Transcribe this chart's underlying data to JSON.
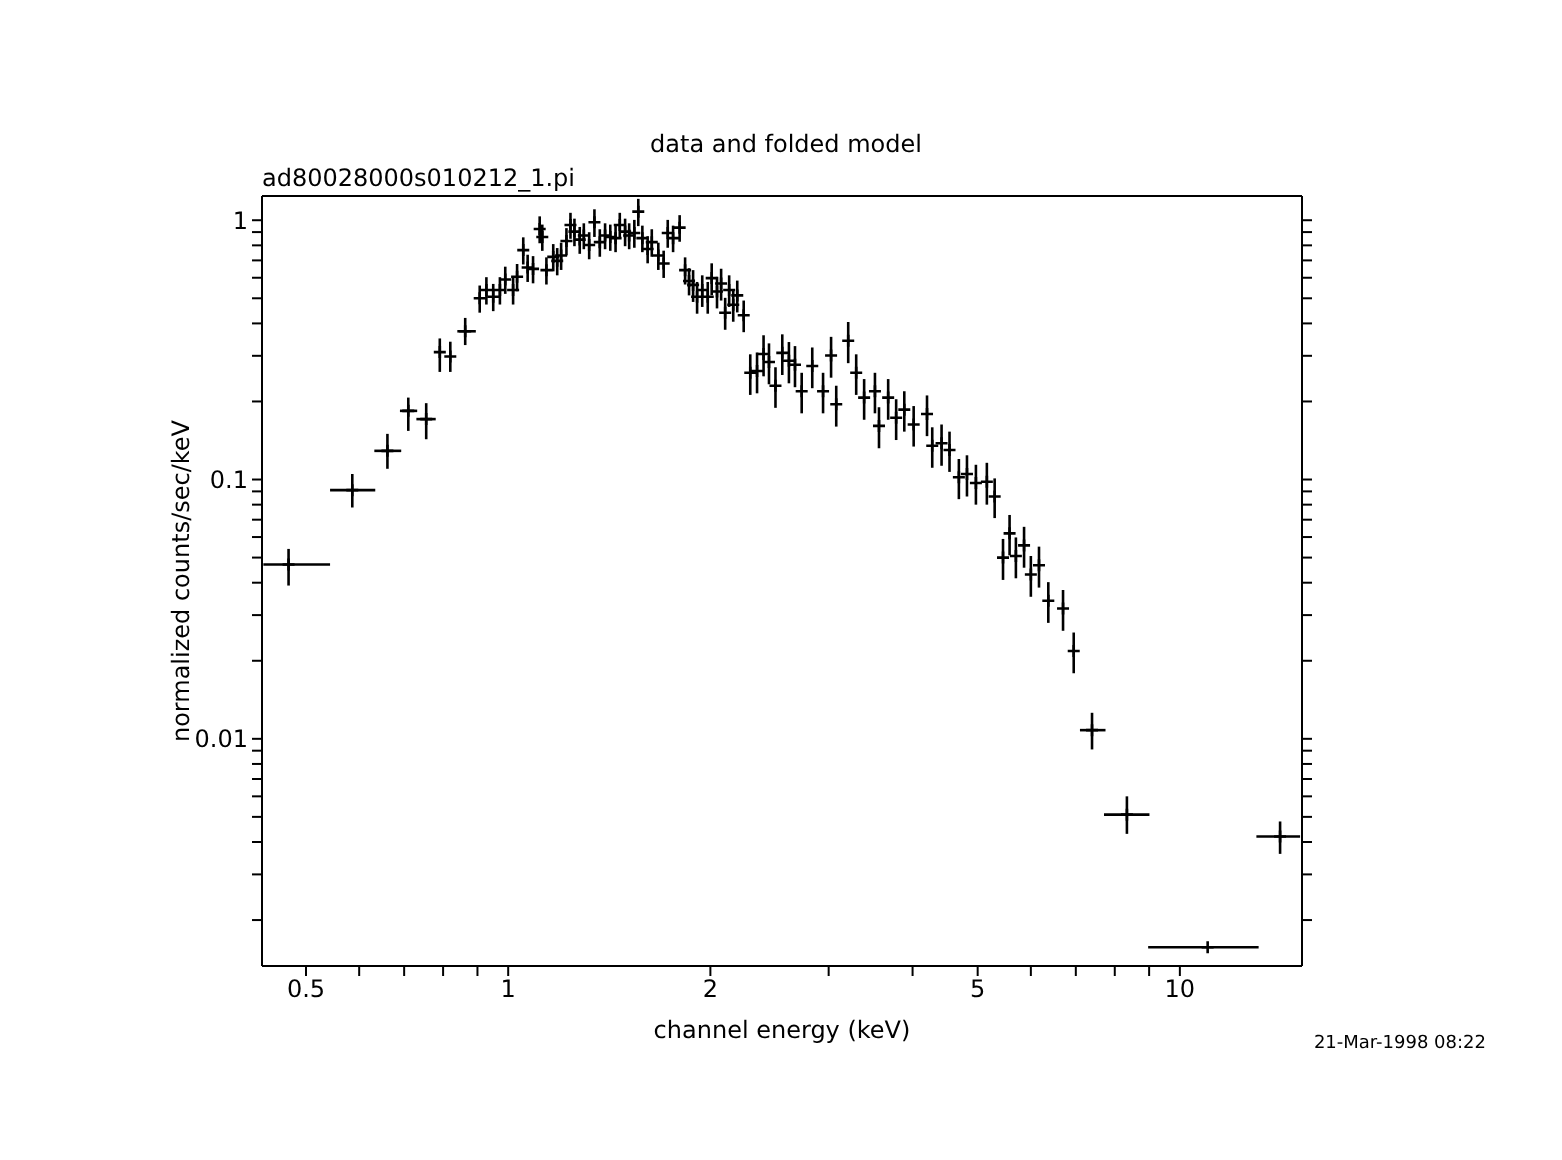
{
  "chart_data": {
    "type": "scatter",
    "title": "data and folded model",
    "subtitle": "ad80028000s010212_1.pi",
    "xlabel": "channel energy (keV)",
    "ylabel": "normalized counts/sec/keV",
    "annotations": [
      "21-Mar-1998 08:22"
    ],
    "log": "xy",
    "marker": "cross",
    "xlim": [
      0.43,
      15.2
    ],
    "ylim": [
      0.00133,
      1.24
    ],
    "xticks": [
      0.5,
      {
        "value": 0.6,
        "label": null
      },
      {
        "value": 0.7,
        "label": null
      },
      {
        "value": 0.8,
        "label": null
      },
      {
        "value": 0.9,
        "label": null
      },
      1,
      2,
      {
        "value": 3,
        "label": null
      },
      {
        "value": 4,
        "label": null
      },
      5,
      {
        "value": 6,
        "label": null
      },
      {
        "value": 7,
        "label": null
      },
      {
        "value": 8,
        "label": null
      },
      {
        "value": 9,
        "label": null
      },
      10
    ],
    "yticks": [
      {
        "value": 0.002,
        "label": null
      },
      {
        "value": 0.003,
        "label": null
      },
      {
        "value": 0.004,
        "label": null
      },
      {
        "value": 0.005,
        "label": null
      },
      {
        "value": 0.006,
        "label": null
      },
      {
        "value": 0.007,
        "label": null
      },
      {
        "value": 0.008,
        "label": null
      },
      {
        "value": 0.009,
        "label": null
      },
      0.01,
      {
        "value": 0.02,
        "label": null
      },
      {
        "value": 0.03,
        "label": null
      },
      {
        "value": 0.04,
        "label": null
      },
      {
        "value": 0.05,
        "label": null
      },
      {
        "value": 0.06,
        "label": null
      },
      {
        "value": 0.07,
        "label": null
      },
      {
        "value": 0.08,
        "label": null
      },
      {
        "value": 0.09,
        "label": null
      },
      0.1,
      {
        "value": 0.2,
        "label": null
      },
      {
        "value": 0.3,
        "label": null
      },
      {
        "value": 0.4,
        "label": null
      },
      {
        "value": 0.5,
        "label": null
      },
      {
        "value": 0.6,
        "label": null
      },
      {
        "value": 0.7,
        "label": null
      },
      {
        "value": 0.8,
        "label": null
      },
      {
        "value": 0.9,
        "label": null
      },
      1
    ],
    "series": [
      {
        "color": "#000000",
        "x": [
          0.471,
          0.586,
          0.661,
          0.71,
          0.755,
          0.791,
          0.82,
          0.863,
          0.907,
          0.928,
          0.95,
          0.972,
          0.99,
          1.017,
          1.031,
          1.053,
          1.069,
          1.089,
          1.114,
          1.124,
          1.14,
          1.167,
          1.183,
          1.199,
          1.221,
          1.238,
          1.255,
          1.278,
          1.296,
          1.32,
          1.344,
          1.369,
          1.394,
          1.419,
          1.445,
          1.466,
          1.493,
          1.514,
          1.541,
          1.562,
          1.584,
          1.613,
          1.636,
          1.673,
          1.704,
          1.728,
          1.76,
          1.8,
          1.834,
          1.859,
          1.885,
          1.911,
          1.945,
          1.982,
          2.009,
          2.046,
          2.075,
          2.104,
          2.133,
          2.163,
          2.193,
          2.242,
          2.293,
          2.347,
          2.4,
          2.445,
          2.5,
          2.559,
          2.618,
          2.673,
          2.735,
          2.836,
          2.943,
          3.025,
          3.079,
          3.208,
          3.297,
          3.388,
          3.516,
          3.565,
          3.679,
          3.781,
          3.888,
          4.015,
          4.203,
          4.279,
          4.418,
          4.54,
          4.688,
          4.82,
          4.97,
          5.16,
          5.3,
          5.454,
          5.578,
          5.7,
          5.862,
          6.0,
          6.17,
          6.37,
          6.7,
          6.95,
          7.4,
          8.34,
          11.0,
          14.1
        ],
        "values": [
          0.047,
          0.091,
          0.129,
          0.184,
          0.171,
          0.31,
          0.298,
          0.373,
          0.5,
          0.538,
          0.507,
          0.538,
          0.591,
          0.538,
          0.605,
          0.767,
          0.657,
          0.649,
          0.925,
          0.862,
          0.642,
          0.722,
          0.697,
          0.731,
          0.832,
          0.958,
          0.904,
          0.842,
          0.873,
          0.803,
          0.982,
          0.823,
          0.873,
          0.862,
          0.853,
          0.958,
          0.904,
          0.873,
          0.893,
          1.079,
          0.853,
          0.775,
          0.823,
          0.731,
          0.681,
          0.893,
          0.853,
          0.936,
          0.642,
          0.583,
          0.563,
          0.507,
          0.538,
          0.507,
          0.598,
          0.531,
          0.57,
          0.44,
          0.538,
          0.472,
          0.513,
          0.43,
          0.258,
          0.262,
          0.305,
          0.284,
          0.23,
          0.308,
          0.287,
          0.277,
          0.219,
          0.274,
          0.219,
          0.301,
          0.195,
          0.343,
          0.258,
          0.207,
          0.219,
          0.161,
          0.207,
          0.173,
          0.186,
          0.163,
          0.179,
          0.135,
          0.138,
          0.13,
          0.102,
          0.105,
          0.097,
          0.098,
          0.086,
          0.05,
          0.062,
          0.0507,
          0.0557,
          0.043,
          0.0467,
          0.0341,
          0.0318,
          0.0218,
          0.0108,
          0.0051,
          0.00157,
          0.0042
        ],
        "errors": [
          [
            0.039,
            0.054
          ],
          [
            0.078,
            0.105
          ],
          [
            0.11,
            0.15
          ],
          [
            0.154,
            0.207
          ],
          [
            0.143,
            0.197
          ],
          [
            0.26,
            0.35
          ],
          [
            0.26,
            0.34
          ],
          [
            0.33,
            0.42
          ],
          0.06,
          0.065,
          0.061,
          0.065,
          0.071,
          0.065,
          0.073,
          0.092,
          0.079,
          0.078,
          0.11,
          0.1,
          0.077,
          0.087,
          0.084,
          0.088,
          0.1,
          0.11,
          0.11,
          0.1,
          0.1,
          0.096,
          0.12,
          0.1,
          0.1,
          0.1,
          0.1,
          0.11,
          0.11,
          0.1,
          0.11,
          0.13,
          0.1,
          0.093,
          0.1,
          0.088,
          0.082,
          0.11,
          0.1,
          0.11,
          0.077,
          0.07,
          0.079,
          0.071,
          0.075,
          0.071,
          0.084,
          0.074,
          0.08,
          0.062,
          0.075,
          0.066,
          0.072,
          0.06,
          0.046,
          0.047,
          0.055,
          0.051,
          0.041,
          0.055,
          0.052,
          0.05,
          0.039,
          0.049,
          0.039,
          0.054,
          0.035,
          0.062,
          0.046,
          0.037,
          0.039,
          0.029,
          0.037,
          0.031,
          0.033,
          0.029,
          0.032,
          0.024,
          0.025,
          0.023,
          0.018,
          0.019,
          0.017,
          0.018,
          0.015,
          0.009,
          0.011,
          0.0091,
          0.01,
          0.0077,
          0.0084,
          0.0061,
          0.0057,
          0.0039,
          [
            0.0091,
            0.0126
          ],
          [
            0.0043,
            0.006
          ],
          null,
          [
            0.0036,
            0.0048
          ]
        ],
        "xerrors": [
          [
            0.432,
            0.543
          ],
          [
            0.543,
            0.634
          ],
          [
            0.632,
            0.693
          ],
          [
            0.69,
            0.732
          ],
          [
            0.73,
            0.78
          ],
          null,
          null,
          [
            0.84,
            0.895
          ],
          null,
          null,
          null,
          null,
          null,
          null,
          null,
          null,
          null,
          null,
          null,
          null,
          null,
          null,
          null,
          null,
          null,
          null,
          null,
          null,
          null,
          null,
          null,
          null,
          null,
          null,
          null,
          null,
          null,
          null,
          null,
          null,
          null,
          null,
          null,
          null,
          null,
          null,
          null,
          null,
          null,
          null,
          null,
          null,
          null,
          null,
          null,
          null,
          null,
          null,
          null,
          null,
          null,
          null,
          null,
          null,
          null,
          null,
          null,
          null,
          null,
          null,
          null,
          null,
          null,
          null,
          null,
          null,
          null,
          null,
          null,
          null,
          null,
          null,
          null,
          null,
          null,
          null,
          null,
          null,
          null,
          null,
          null,
          null,
          null,
          null,
          null,
          null,
          null,
          null,
          null,
          null,
          null,
          null,
          [
            7.1,
            7.75
          ],
          [
            7.71,
            9.01
          ],
          [
            8.97,
            13.1
          ],
          [
            13.0,
            15.1
          ]
        ]
      }
    ]
  }
}
